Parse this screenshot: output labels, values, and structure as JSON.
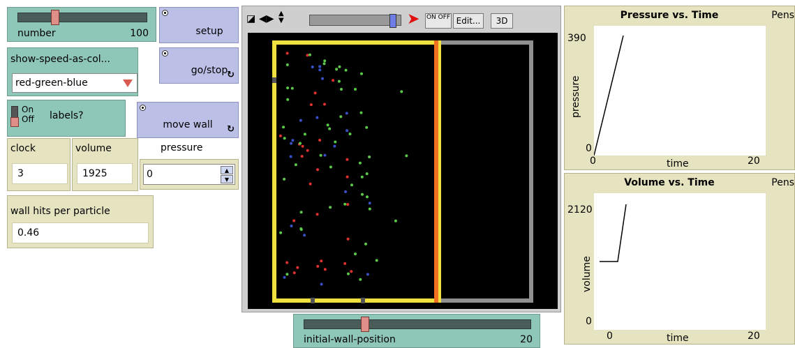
{
  "number_slider": {
    "label": "number",
    "value": "100",
    "fraction": 0.55
  },
  "setup_button": {
    "label": "setup"
  },
  "speed_chooser": {
    "label": "show-speed-as-col...",
    "selected": "red-green-blue"
  },
  "go_button": {
    "label": "go/stop",
    "forever_icon": "↻"
  },
  "labels_switch": {
    "on": "On",
    "off": "Off",
    "label": "labels?",
    "state": "off"
  },
  "move_wall_button": {
    "label": "move wall",
    "forever_icon": "↻"
  },
  "clock_monitor": {
    "label": "clock",
    "value": "3"
  },
  "volume_monitor": {
    "label": "volume",
    "value": "1925"
  },
  "pressure_input": {
    "label": "pressure",
    "value": "0"
  },
  "wall_hits_monitor": {
    "label": "wall hits per particle",
    "value": "0.46"
  },
  "view_toolbar": {
    "edit_label": "Edit...",
    "three_d_label": "3D",
    "onoff_label": "ON OFF",
    "speed_fraction": 0.95
  },
  "wall_slider": {
    "label": "initial-wall-position",
    "value": "20",
    "fraction": 0.28
  },
  "pressure_plot": {
    "title": "Pressure vs. Time",
    "pens_label": "Pens",
    "ymax": "390",
    "ymin": "0",
    "xmin": "0",
    "xmax": "20",
    "xlabel": "time",
    "ylabel": "pressure"
  },
  "volume_plot": {
    "title": "Volume vs. Time",
    "pens_label": "Pens",
    "ymax": "2120",
    "ymin": "0",
    "xmin": "0",
    "xmax": "20",
    "xlabel": "time",
    "ylabel": "volume"
  },
  "colors": {
    "slider": "#8ec7b7",
    "button": "#bcbfe6",
    "monitor": "#e6e4c0",
    "wall_yellow": "#f0e040",
    "wall_orange": "#f07020",
    "wall_gray": "#909090",
    "particle_green": "#5cc84a",
    "particle_red": "#e03030",
    "particle_blue": "#3a50c8"
  }
}
